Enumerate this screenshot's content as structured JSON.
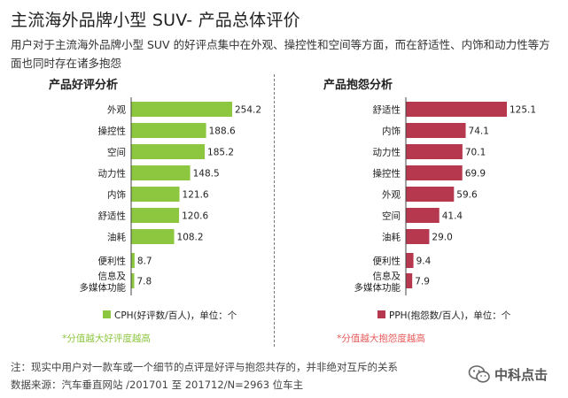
{
  "header": {
    "title": "主流海外品牌小型 SUV- 产品总体评价",
    "subtitle": "用户对于主流海外品牌小型 SUV 的好评点集中在外观、操控性和空间等方面，而在舒适性、内饰和动力性等方面也同时存在诸多抱怨"
  },
  "chart_data": [
    {
      "type": "bar",
      "orientation": "horizontal",
      "title": "产品好评分析",
      "categories": [
        "外观",
        "操控性",
        "空间",
        "动力性",
        "内饰",
        "舒适性",
        "油耗",
        "便利性",
        "信息及\n多媒体功能"
      ],
      "values": [
        254.2,
        188.6,
        185.2,
        148.5,
        121.6,
        120.6,
        108.2,
        8.7,
        7.8
      ],
      "value_labels": [
        "254.2",
        "188.6",
        "185.2",
        "148.5",
        "121.6",
        "120.6",
        "108.2",
        "8.7",
        "7.8"
      ],
      "xlim": [
        0,
        254.2
      ],
      "color": "#8dc63f",
      "legend": {
        "label": "CPH(好评数/百人)，单位：个",
        "position": "bottom"
      },
      "note": "*分值越大好评度越高",
      "note_color": "#8dc63f"
    },
    {
      "type": "bar",
      "orientation": "horizontal",
      "title": "产品抱怨分析",
      "categories": [
        "舒适性",
        "内饰",
        "动力性",
        "操控性",
        "外观",
        "空间",
        "油耗",
        "便利性",
        "信息及\n多媒体功能"
      ],
      "values": [
        125.1,
        74.1,
        70.1,
        69.9,
        59.6,
        41.4,
        29.0,
        9.4,
        7.9
      ],
      "value_labels": [
        "125.1",
        "74.1",
        "70.1",
        "69.9",
        "59.6",
        "41.4",
        "29.0",
        "9.4",
        "7.9"
      ],
      "xlim": [
        0,
        125.1
      ],
      "color": "#b5384f",
      "legend": {
        "label": "PPH(抱怨数/百人)，单位：个",
        "position": "bottom"
      },
      "note": "*分值越大抱怨度越高",
      "note_color": "#e85a5a"
    }
  ],
  "footer": {
    "note": "注：现实中用户对一款车或一个细节的点评是好评与抱怨共存的，并非绝对互斥的关系",
    "source": "数据来源：汽车垂直网站 /201701 至 201712/N=2963 位车主",
    "brand": "中科点击",
    "brand_icon": "wechat-icon"
  }
}
